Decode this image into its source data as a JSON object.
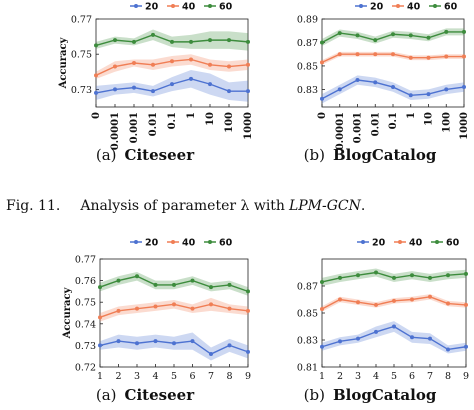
{
  "figure_caption": {
    "label": "Fig. 11.",
    "text": "Analysis of parameter λ with",
    "method": "LPM-GCN",
    "end": "."
  },
  "colors": {
    "20": "#4d72d1",
    "40": "#f07e55",
    "60": "#3d8c3d"
  },
  "chart_data": [
    {
      "panel": "top-left",
      "type": "line",
      "sub_label": "(a)",
      "sub_title": "Citeseer",
      "ylabel": "Accuracy",
      "xlabel": "",
      "categories": [
        "0",
        "0.0001",
        "0.001",
        "0.01",
        "0.1",
        "1",
        "10",
        "100",
        "1000"
      ],
      "x_tick_style": "rotated-bold",
      "ylim": [
        0.72,
        0.77
      ],
      "yticks": [
        "0.73",
        "0.75",
        "0.77"
      ],
      "ytick_values": [
        0.73,
        0.75,
        0.77
      ],
      "legend": [
        "20",
        "40",
        "60"
      ],
      "legend_position": "top",
      "grid": false,
      "series": [
        {
          "name": "20",
          "values": [
            0.728,
            0.73,
            0.731,
            0.729,
            0.733,
            0.736,
            0.733,
            0.729,
            0.729
          ],
          "band": [
            0.004,
            0.003,
            0.003,
            0.003,
            0.004,
            0.005,
            0.006,
            0.005,
            0.006
          ]
        },
        {
          "name": "40",
          "values": [
            0.738,
            0.743,
            0.745,
            0.744,
            0.746,
            0.747,
            0.744,
            0.743,
            0.744
          ],
          "band": [
            0.002,
            0.003,
            0.002,
            0.003,
            0.003,
            0.003,
            0.003,
            0.003,
            0.003
          ]
        },
        {
          "name": "60",
          "values": [
            0.755,
            0.758,
            0.757,
            0.761,
            0.757,
            0.757,
            0.758,
            0.758,
            0.757
          ],
          "band": [
            0.002,
            0.002,
            0.002,
            0.003,
            0.003,
            0.004,
            0.005,
            0.005,
            0.005
          ]
        }
      ]
    },
    {
      "panel": "top-right",
      "type": "line",
      "sub_label": "(b)",
      "sub_title": "BlogCatalog",
      "ylabel": "",
      "xlabel": "",
      "categories": [
        "0",
        "0.0001",
        "0.001",
        "0.01",
        "0.1",
        "1",
        "10",
        "100",
        "1000"
      ],
      "x_tick_style": "rotated-bold",
      "ylim": [
        0.815,
        0.89
      ],
      "yticks": [
        "0.83",
        "0.85",
        "0.87",
        "0.89"
      ],
      "ytick_values": [
        0.83,
        0.85,
        0.87,
        0.89
      ],
      "legend": [
        "20",
        "40",
        "60"
      ],
      "legend_position": "top",
      "grid": false,
      "series": [
        {
          "name": "20",
          "values": [
            0.822,
            0.83,
            0.838,
            0.836,
            0.832,
            0.825,
            0.826,
            0.83,
            0.832
          ],
          "band": [
            0.004,
            0.004,
            0.004,
            0.004,
            0.004,
            0.004,
            0.004,
            0.004,
            0.004
          ]
        },
        {
          "name": "40",
          "values": [
            0.853,
            0.86,
            0.86,
            0.86,
            0.86,
            0.857,
            0.857,
            0.858,
            0.858
          ],
          "band": [
            0.002,
            0.002,
            0.002,
            0.002,
            0.002,
            0.002,
            0.002,
            0.002,
            0.002
          ]
        },
        {
          "name": "60",
          "values": [
            0.87,
            0.878,
            0.876,
            0.872,
            0.877,
            0.876,
            0.874,
            0.879,
            0.879
          ],
          "band": [
            0.003,
            0.003,
            0.003,
            0.003,
            0.003,
            0.003,
            0.003,
            0.003,
            0.003
          ]
        }
      ]
    },
    {
      "panel": "bottom-left",
      "type": "line",
      "sub_label": "(a)",
      "sub_title": "Citeseer",
      "ylabel": "Accuracy",
      "xlabel": "",
      "categories": [
        "1",
        "2",
        "3",
        "4",
        "5",
        "6",
        "7",
        "8",
        "9"
      ],
      "x_tick_style": "plain",
      "ylim": [
        0.72,
        0.77
      ],
      "yticks": [
        "0.72",
        "0.73",
        "0.74",
        "0.75",
        "0.76",
        "0.77"
      ],
      "ytick_values": [
        0.72,
        0.73,
        0.74,
        0.75,
        0.76,
        0.77
      ],
      "legend": [
        "20",
        "40",
        "60"
      ],
      "legend_position": "top",
      "grid": false,
      "series": [
        {
          "name": "20",
          "values": [
            0.73,
            0.732,
            0.731,
            0.732,
            0.731,
            0.732,
            0.726,
            0.73,
            0.727
          ],
          "band": [
            0.002,
            0.003,
            0.003,
            0.003,
            0.003,
            0.004,
            0.003,
            0.003,
            0.003
          ]
        },
        {
          "name": "40",
          "values": [
            0.743,
            0.746,
            0.747,
            0.748,
            0.749,
            0.747,
            0.749,
            0.747,
            0.746
          ],
          "band": [
            0.002,
            0.002,
            0.002,
            0.002,
            0.002,
            0.002,
            0.003,
            0.002,
            0.002
          ]
        },
        {
          "name": "60",
          "values": [
            0.757,
            0.76,
            0.762,
            0.758,
            0.758,
            0.76,
            0.757,
            0.758,
            0.755
          ],
          "band": [
            0.002,
            0.002,
            0.002,
            0.002,
            0.002,
            0.002,
            0.002,
            0.002,
            0.002
          ]
        }
      ]
    },
    {
      "panel": "bottom-right",
      "type": "line",
      "sub_label": "(b)",
      "sub_title": "BlogCatalog",
      "ylabel": "",
      "xlabel": "",
      "categories": [
        "1",
        "2",
        "3",
        "4",
        "5",
        "6",
        "7",
        "8",
        "9"
      ],
      "x_tick_style": "plain",
      "ylim": [
        0.81,
        0.89
      ],
      "yticks": [
        "0.81",
        "0.83",
        "0.85",
        "0.87"
      ],
      "ytick_values": [
        0.81,
        0.83,
        0.85,
        0.87
      ],
      "legend": [
        "20",
        "40",
        "60"
      ],
      "legend_position": "top",
      "grid": false,
      "series": [
        {
          "name": "20",
          "values": [
            0.825,
            0.829,
            0.831,
            0.836,
            0.84,
            0.832,
            0.831,
            0.823,
            0.825
          ],
          "band": [
            0.003,
            0.003,
            0.003,
            0.004,
            0.004,
            0.004,
            0.004,
            0.003,
            0.003
          ]
        },
        {
          "name": "40",
          "values": [
            0.853,
            0.86,
            0.858,
            0.856,
            0.859,
            0.86,
            0.862,
            0.857,
            0.856
          ],
          "band": [
            0.002,
            0.002,
            0.002,
            0.002,
            0.002,
            0.002,
            0.002,
            0.002,
            0.002
          ]
        },
        {
          "name": "60",
          "values": [
            0.873,
            0.876,
            0.878,
            0.88,
            0.876,
            0.878,
            0.876,
            0.878,
            0.879
          ],
          "band": [
            0.003,
            0.003,
            0.003,
            0.003,
            0.003,
            0.003,
            0.003,
            0.003,
            0.003
          ]
        }
      ]
    }
  ]
}
